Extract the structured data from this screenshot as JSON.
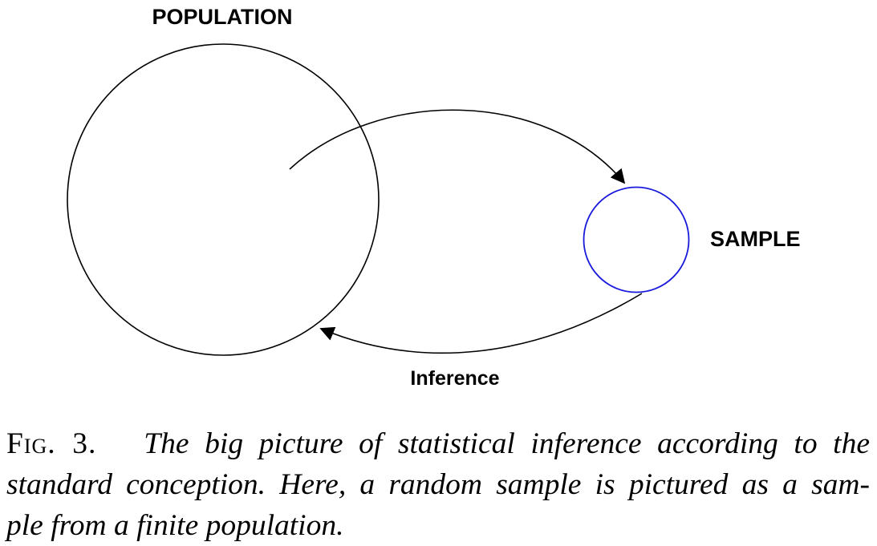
{
  "diagram": {
    "population_label": "POPULATION",
    "sample_label": "SAMPLE",
    "inference_label": "Inference",
    "colors": {
      "population_circle": "#000000",
      "sample_circle": "#1a1adc",
      "arrows": "#000000"
    }
  },
  "caption": {
    "figure_label": "Fig. 3.",
    "line1": "The big picture of statistical inference according to the",
    "line2": "standard conception. Here, a random sample is pictured as a sam-",
    "line3": "ple from a finite population."
  }
}
